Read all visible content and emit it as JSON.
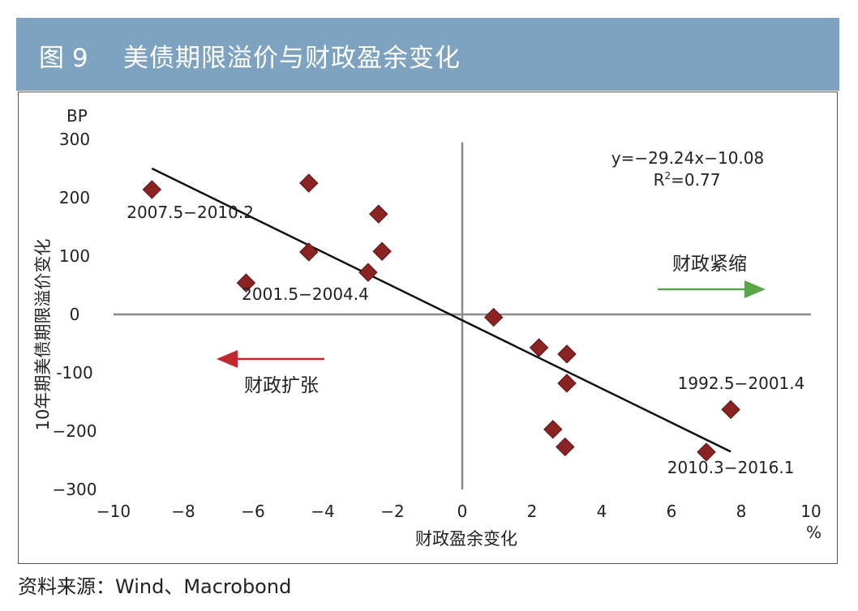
{
  "header": {
    "figure_no": "图 9",
    "title": "美债期限溢价与财政盈余变化"
  },
  "source": "资料来源：Wind、Macrobond",
  "colors": {
    "header_bg": "#7ea3c0",
    "point": "#8b2323",
    "expand_arrow": "#c0282d",
    "tighten_arrow": "#5aa54a"
  },
  "chart_data": {
    "type": "scatter",
    "title": "美债期限溢价与财政盈余变化",
    "xlabel": "财政盈余变化",
    "x_unit": "%",
    "ylabel": "10年期美债期限溢价变化",
    "y_unit": "BP",
    "xlim": [
      -10,
      10
    ],
    "ylim": [
      -300,
      300
    ],
    "x_ticks": [
      "−10",
      "−8",
      "−6",
      "−4",
      "−2",
      "0",
      "2",
      "4",
      "6",
      "8",
      "10"
    ],
    "x_tick_values": [
      -10,
      -8,
      -6,
      -4,
      -2,
      0,
      2,
      4,
      6,
      8,
      10
    ],
    "y_ticks": [
      "300",
      "200",
      "100",
      "0",
      "-100",
      "−200",
      "−300"
    ],
    "y_tick_values": [
      300,
      200,
      100,
      0,
      -100,
      -200,
      -300
    ],
    "points": [
      {
        "x": -8.9,
        "y": 214
      },
      {
        "x": -4.4,
        "y": 225
      },
      {
        "x": -2.4,
        "y": 172
      },
      {
        "x": -2.3,
        "y": 108
      },
      {
        "x": -4.4,
        "y": 107
      },
      {
        "x": -2.7,
        "y": 72
      },
      {
        "x": -6.2,
        "y": 54
      },
      {
        "x": 0.9,
        "y": -5
      },
      {
        "x": 2.2,
        "y": -57
      },
      {
        "x": 3.0,
        "y": -68
      },
      {
        "x": 3.0,
        "y": -118
      },
      {
        "x": 7.7,
        "y": -163
      },
      {
        "x": 2.6,
        "y": -197
      },
      {
        "x": 2.95,
        "y": -227
      },
      {
        "x": 7.0,
        "y": -236
      }
    ],
    "trendline": {
      "equation": "y=−29.24x−10.08",
      "slope": -29.24,
      "intercept": -10.08,
      "x_range": [
        -8.9,
        7.7
      ]
    },
    "r2_prefix": "R",
    "r2_sup": "2",
    "r2_value": "=0.77",
    "annotations": [
      {
        "text": "2007.5−2010.2",
        "x": -7.8,
        "y": 165
      },
      {
        "text": "2001.5−2004.4",
        "x": -4.5,
        "y": 25
      },
      {
        "text": "1992.5−2001.4",
        "x": 8.0,
        "y": -128
      },
      {
        "text": "2010.3−2016.1",
        "x": 7.7,
        "y": -272
      }
    ],
    "arrows": [
      {
        "label": "财政紧缩",
        "direction": "right"
      },
      {
        "label": "财政扩张",
        "direction": "left"
      }
    ]
  }
}
